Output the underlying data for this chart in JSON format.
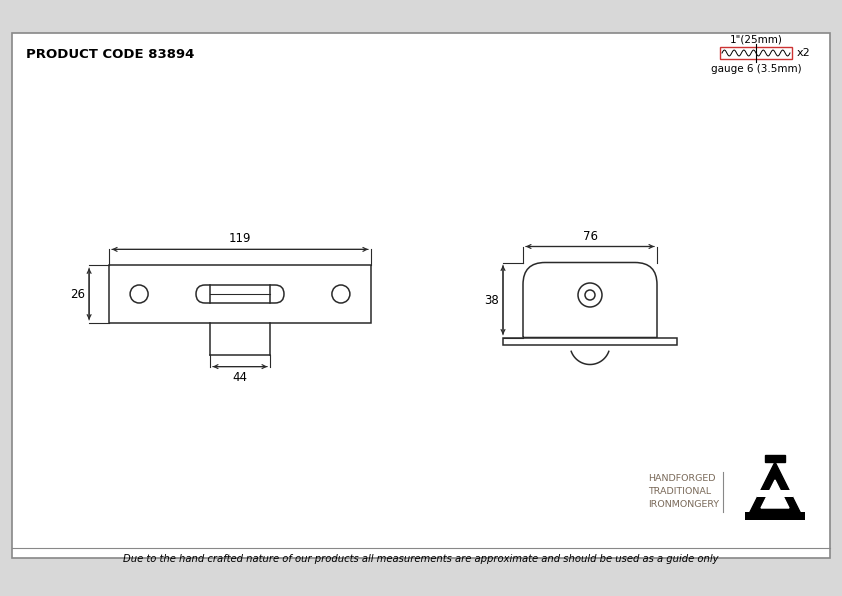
{
  "product_code": "PRODUCT CODE 83894",
  "footer_text": "Due to the hand crafted nature of our products all measurements are approximate and should be used as a guide only",
  "screw_label_top": "1\"(25mm)",
  "screw_label_bottom": "gauge 6 (3.5mm)",
  "screw_x2": "x2",
  "dim_119": "119",
  "dim_26": "26",
  "dim_44": "44",
  "dim_76": "76",
  "dim_38": "38",
  "bg_color": "#d8d8d8",
  "drawing_bg": "#ffffff",
  "line_color": "#2a2a2a",
  "border_color": "#888888",
  "logo_text_color": "#7a6a5a",
  "screw_rect_color": "#cc3333"
}
